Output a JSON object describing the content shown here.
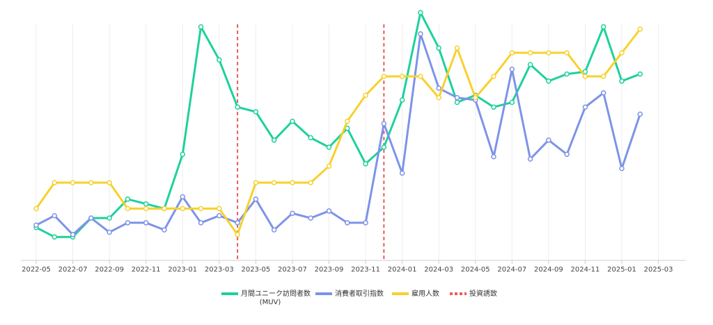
{
  "chart_data": {
    "type": "line",
    "title": "",
    "xlabel": "",
    "ylabel": "",
    "x": [
      "2022-05",
      "2022-06",
      "2022-07",
      "2022-08",
      "2022-09",
      "2022-10",
      "2022-11",
      "2022-12",
      "2023-01",
      "2023-02",
      "2023-03",
      "2023-04",
      "2023-05",
      "2023-06",
      "2023-07",
      "2023-08",
      "2023-09",
      "2023-10",
      "2023-11",
      "2023-12",
      "2024-01",
      "2024-02",
      "2024-03",
      "2024-04",
      "2024-05",
      "2024-06",
      "2024-07",
      "2024-08",
      "2024-09",
      "2024-10",
      "2024-11",
      "2024-12",
      "2025-01",
      "2025-02"
    ],
    "x_ticks": [
      "2022-05",
      "2022-07",
      "2022-09",
      "2022-11",
      "2023-01",
      "2023-03",
      "2023-05",
      "2023-07",
      "2023-09",
      "2023-11",
      "2024-01",
      "2024-03",
      "2024-05",
      "2024-07",
      "2024-09",
      "2024-11",
      "2025-01",
      "2025-03"
    ],
    "ylim": [
      0,
      100
    ],
    "y_axis_labels_shown": false,
    "grid": "vertical",
    "legend_position": "bottom",
    "series": [
      {
        "name": "月間ユニーク訪問者数\n(MUV)",
        "color": "#1dd19b",
        "values": [
          11,
          7,
          7,
          15,
          15,
          23,
          21,
          19,
          42,
          96,
          82,
          62,
          60,
          48,
          56,
          49,
          45,
          53,
          38,
          45,
          65,
          102,
          87,
          64,
          67,
          62,
          64,
          80,
          73,
          76,
          77,
          96,
          73,
          76
        ]
      },
      {
        "name": "消費者取引指数",
        "color": "#7d93e8",
        "values": [
          12,
          16,
          8,
          15,
          9,
          13,
          13,
          10,
          24,
          13,
          16,
          13,
          23,
          10,
          17,
          15,
          18,
          13,
          13,
          55,
          34,
          93,
          70,
          66,
          65,
          41,
          78,
          40,
          48,
          42,
          62,
          68,
          36,
          59
        ]
      },
      {
        "name": "雇用人数",
        "color": "#f7d12c",
        "values": [
          19,
          30,
          30,
          30,
          30,
          19,
          19,
          19,
          19,
          19,
          19,
          8,
          30,
          30,
          30,
          30,
          37,
          56,
          67,
          75,
          75,
          75,
          66,
          87,
          66,
          75,
          85,
          85,
          85,
          85,
          75,
          75,
          85,
          95
        ]
      }
    ],
    "vlines": [
      {
        "name": "投資誘致",
        "x": "2023-04",
        "color": "#e85d5d"
      },
      {
        "name": "投資誘致",
        "x": "2023-12",
        "color": "#e85d5d"
      }
    ]
  }
}
